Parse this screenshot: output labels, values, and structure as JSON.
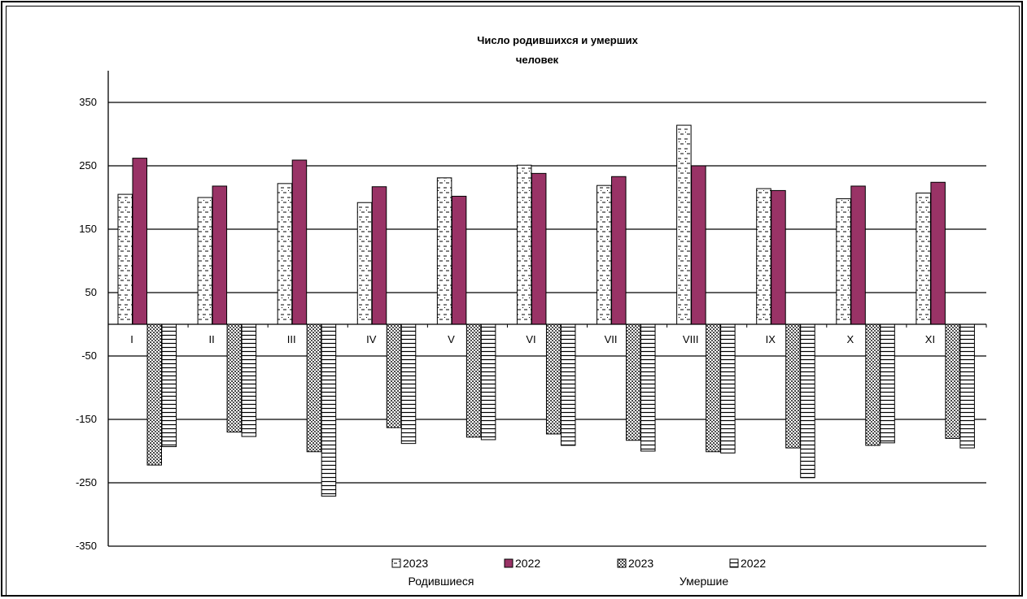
{
  "chart_data": {
    "type": "bar",
    "title": "Число родившихся и умерших",
    "subtitle": "человек",
    "categories": [
      "I",
      "II",
      "III",
      "IV",
      "V",
      "VI",
      "VII",
      "VIII",
      "IX",
      "X",
      "XI"
    ],
    "ylim": [
      -350,
      400
    ],
    "yticks": [
      350,
      250,
      150,
      50,
      -50,
      -150,
      -250,
      -350
    ],
    "grid": true,
    "legend_position": "bottom",
    "series": [
      {
        "name": "2023",
        "group": "Родившиеся",
        "pattern": "dashes",
        "color": "#ffffff",
        "values": [
          205,
          200,
          222,
          192,
          231,
          251,
          219,
          314,
          214,
          198,
          207
        ]
      },
      {
        "name": "2022",
        "group": "Родившиеся",
        "pattern": "solid",
        "color": "#993366",
        "values": [
          262,
          218,
          259,
          217,
          202,
          238,
          233,
          250,
          211,
          218,
          224
        ]
      },
      {
        "name": "2023",
        "group": "Умершие",
        "pattern": "crosshatch",
        "color": "#808080",
        "values": [
          -222,
          -170,
          -201,
          -163,
          -178,
          -173,
          -183,
          -201,
          -195,
          -191,
          -180
        ]
      },
      {
        "name": "2022",
        "group": "Умершие",
        "pattern": "horizontal-lines",
        "color": "#ffffff",
        "values": [
          -193,
          -177,
          -271,
          -188,
          -182,
          -191,
          -200,
          -203,
          -242,
          -187,
          -195
        ]
      }
    ],
    "legend_groups": [
      "Родившиеся",
      "Умершие"
    ]
  }
}
